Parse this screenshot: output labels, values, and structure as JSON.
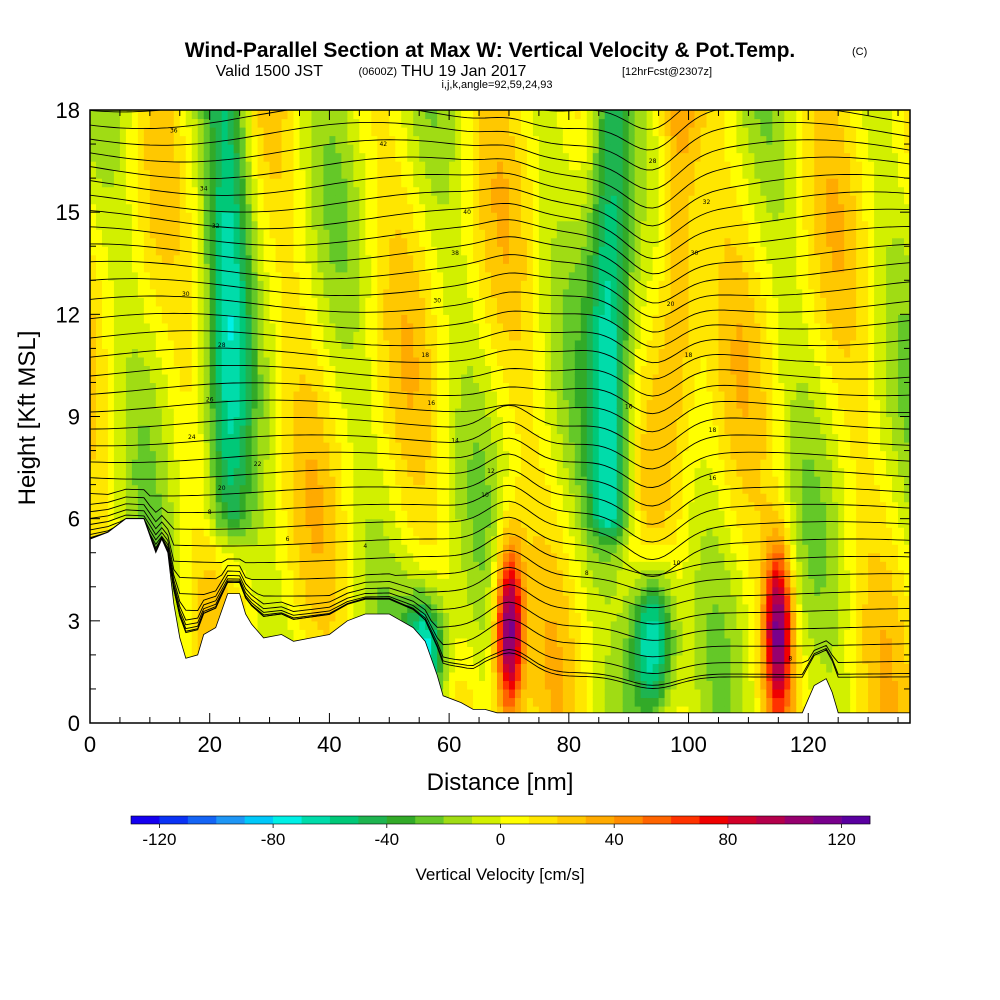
{
  "title": {
    "main": "Wind-Parallel Section at Max W: Vertical Velocity & Pot.Temp.",
    "copyright": "(C)",
    "valid_prefix": "Valid 1500 JST",
    "valid_zulu": "(0600Z)",
    "valid_date": "THU 19 Jan 2017",
    "forecast": "[12hrFcst@2307z]",
    "ijk": "i,j,k,angle=92,59,24,93"
  },
  "chart_data": {
    "type": "heatmap",
    "xlabel": "Distance [nm]",
    "ylabel": "Height [Kft MSL]",
    "xlim": [
      0,
      137
    ],
    "ylim": [
      0,
      18
    ],
    "xticks": [
      "0",
      "20",
      "40",
      "60",
      "80",
      "100",
      "120"
    ],
    "yticks": [
      "0",
      "3",
      "6",
      "9",
      "12",
      "15",
      "18"
    ],
    "colorbar": {
      "label": "Vertical Velocity [cm/s]",
      "min": -130,
      "max": 130,
      "ticks": [
        "-120",
        "-80",
        "-40",
        "0",
        "40",
        "80",
        "120"
      ],
      "colors": [
        "#1400f0",
        "#0a32f5",
        "#1464f5",
        "#1e96f5",
        "#00c8fa",
        "#00f0e6",
        "#00dcaa",
        "#00c878",
        "#1eb450",
        "#32aa28",
        "#64c828",
        "#a0dc14",
        "#d2f000",
        "#ffff00",
        "#ffe600",
        "#ffc800",
        "#ffaa00",
        "#ff8c00",
        "#ff6400",
        "#ff3200",
        "#f00000",
        "#d20028",
        "#b4004b",
        "#96006e",
        "#78008c",
        "#5a00a0"
      ]
    },
    "velocity_features": [
      {
        "x": 11,
        "z_top": 13,
        "w": -10,
        "kind": "slanted downdraft band"
      },
      {
        "x": 23,
        "z_top": 18,
        "w": -50,
        "kind": "downdraft column"
      },
      {
        "x": 56,
        "z_top": 4,
        "w": -85,
        "kind": "lee downdraft"
      },
      {
        "x": 70,
        "z_top": 5.5,
        "w": 120,
        "kind": "updraft core"
      },
      {
        "x": 87,
        "z_top": 18,
        "w": -70,
        "kind": "upper downdraft"
      },
      {
        "x": 94,
        "z_top": 5,
        "w": -90,
        "kind": "lower downdraft"
      },
      {
        "x": 115,
        "z_top": 5.5,
        "w": 105,
        "kind": "updraft core"
      },
      {
        "x": 98,
        "z_top": 15,
        "w": 45,
        "kind": "upper updraft"
      }
    ],
    "theta_contour_labels": [
      {
        "text": "36",
        "x": 14,
        "z": 17.4
      },
      {
        "text": "34",
        "x": 19,
        "z": 15.7
      },
      {
        "text": "32",
        "x": 21,
        "z": 14.6
      },
      {
        "text": "30",
        "x": 16,
        "z": 12.6
      },
      {
        "text": "28",
        "x": 22,
        "z": 11.1
      },
      {
        "text": "26",
        "x": 20,
        "z": 9.5
      },
      {
        "text": "24",
        "x": 17,
        "z": 8.4
      },
      {
        "text": "22",
        "x": 28,
        "z": 7.6
      },
      {
        "text": "20",
        "x": 22,
        "z": 6.9
      },
      {
        "text": "8",
        "x": 20,
        "z": 6.2
      },
      {
        "text": "6",
        "x": 33,
        "z": 5.4
      },
      {
        "text": "4",
        "x": 46,
        "z": 5.2
      },
      {
        "text": "42",
        "x": 49,
        "z": 17.0
      },
      {
        "text": "40",
        "x": 63,
        "z": 15.0
      },
      {
        "text": "38",
        "x": 61,
        "z": 13.8
      },
      {
        "text": "30",
        "x": 58,
        "z": 12.4
      },
      {
        "text": "18",
        "x": 56,
        "z": 10.8
      },
      {
        "text": "16",
        "x": 57,
        "z": 9.4
      },
      {
        "text": "14",
        "x": 61,
        "z": 8.3
      },
      {
        "text": "12",
        "x": 67,
        "z": 7.4
      },
      {
        "text": "10",
        "x": 66,
        "z": 6.7
      },
      {
        "text": "8",
        "x": 83,
        "z": 4.4
      },
      {
        "text": "28",
        "x": 94,
        "z": 16.5
      },
      {
        "text": "32",
        "x": 103,
        "z": 15.3
      },
      {
        "text": "30",
        "x": 101,
        "z": 13.8
      },
      {
        "text": "20",
        "x": 97,
        "z": 12.3
      },
      {
        "text": "18",
        "x": 100,
        "z": 10.8
      },
      {
        "text": "16",
        "x": 90,
        "z": 9.3
      },
      {
        "text": "18",
        "x": 104,
        "z": 8.6
      },
      {
        "text": "16",
        "x": 104,
        "z": 7.2
      },
      {
        "text": "10",
        "x": 98,
        "z": 4.7
      },
      {
        "text": "8",
        "x": 117,
        "z": 1.9
      }
    ]
  }
}
